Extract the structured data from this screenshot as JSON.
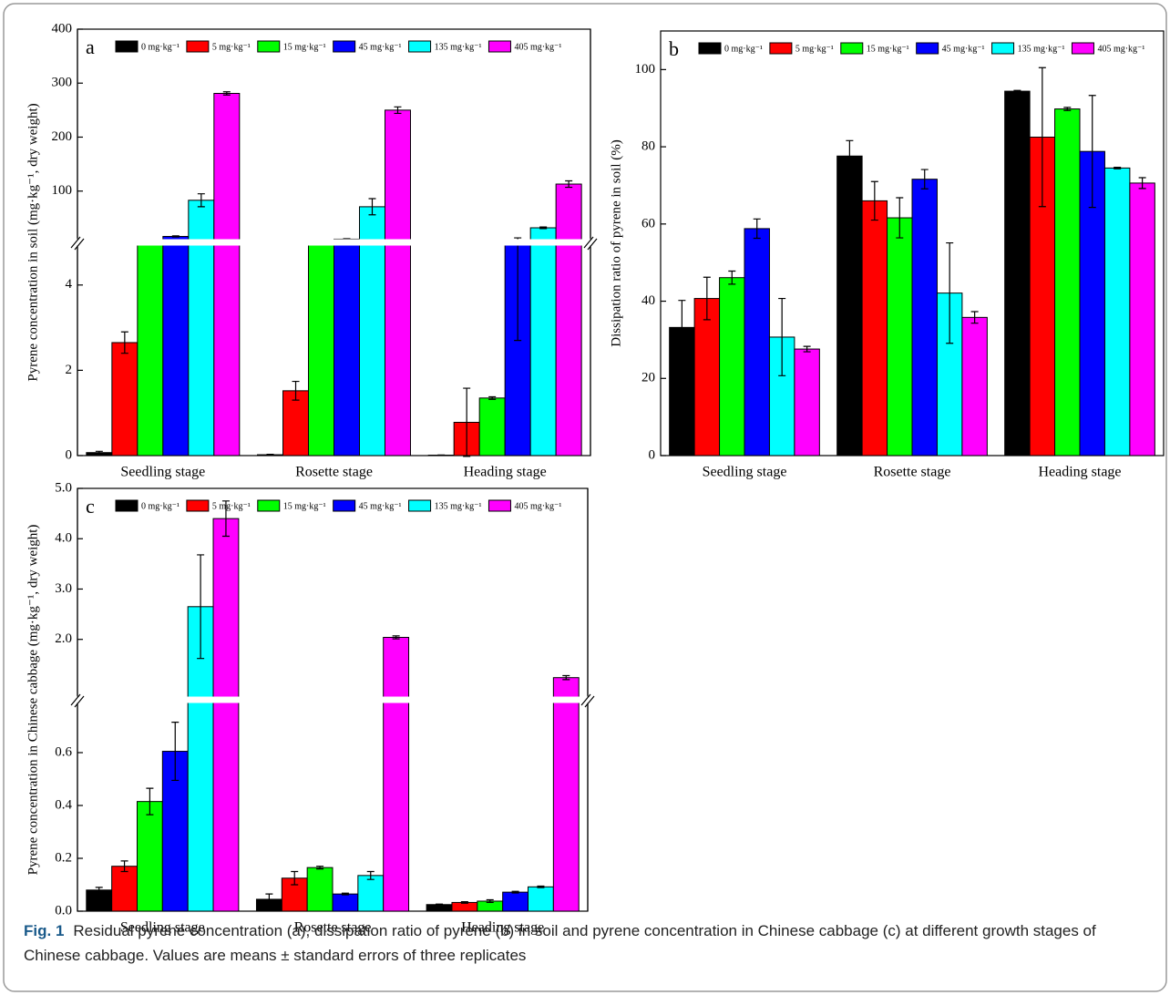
{
  "chart_data": [
    {
      "type": "bar",
      "panel_label": "a",
      "ylabel": "Pyrene concentration in soil (mg·kg⁻¹, dry weight)",
      "categories": [
        "Seedling stage",
        "Rosette stage",
        "Heading stage"
      ],
      "series": [
        {
          "name": "0 mg·kg⁻¹",
          "color": "#000000",
          "values": [
            0.07,
            0.02,
            0.01
          ],
          "errors": [
            0.03,
            0.01,
            0.005
          ]
        },
        {
          "name": "5 mg·kg⁻¹",
          "color": "#ff0000",
          "values": [
            2.65,
            1.52,
            0.78
          ],
          "errors": [
            0.25,
            0.22,
            0.8
          ]
        },
        {
          "name": "15 mg·kg⁻¹",
          "color": "#00ff00",
          "values": [
            7,
            6,
            1.35
          ],
          "errors": [
            0.3,
            0.3,
            0.03
          ]
        },
        {
          "name": "45 mg·kg⁻¹",
          "color": "#0000ff",
          "values": [
            16,
            11,
            8
          ],
          "errors": [
            1,
            0.8,
            5.3
          ]
        },
        {
          "name": "135 mg·kg⁻¹",
          "color": "#00ffff",
          "values": [
            83,
            71,
            32
          ],
          "errors": [
            12,
            15,
            1.5
          ]
        },
        {
          "name": "405 mg·kg⁻¹",
          "color": "#ff00ff",
          "values": [
            281,
            250,
            113
          ],
          "errors": [
            3,
            6,
            6
          ]
        }
      ],
      "ylim": [
        0,
        400
      ],
      "yticks": [
        0,
        2,
        4,
        100,
        200,
        300,
        400
      ],
      "y_break": 5
    },
    {
      "type": "bar",
      "panel_label": "b",
      "ylabel": "Dissipation ratio of pyrene in soil (%)",
      "categories": [
        "Seedling stage",
        "Rosette stage",
        "Heading stage"
      ],
      "series": [
        {
          "name": "0 mg·kg⁻¹",
          "color": "#000000",
          "values": [
            33.2,
            77.6,
            94.4
          ],
          "errors": [
            7,
            4,
            0.2
          ]
        },
        {
          "name": "5 mg·kg⁻¹",
          "color": "#ff0000",
          "values": [
            40.7,
            66,
            82.5
          ],
          "errors": [
            5.5,
            5,
            18
          ]
        },
        {
          "name": "15 mg·kg⁻¹",
          "color": "#00ff00",
          "values": [
            46.1,
            61.6,
            89.8
          ],
          "errors": [
            1.7,
            5.2,
            0.4
          ]
        },
        {
          "name": "45 mg·kg⁻¹",
          "color": "#0000ff",
          "values": [
            58.8,
            71.6,
            78.8
          ],
          "errors": [
            2.5,
            2.5,
            14.5
          ]
        },
        {
          "name": "135 mg·kg⁻¹",
          "color": "#00ffff",
          "values": [
            30.7,
            42.1,
            74.5
          ],
          "errors": [
            10,
            13,
            0.2
          ]
        },
        {
          "name": "405 mg·kg⁻¹",
          "color": "#ff00ff",
          "values": [
            27.6,
            35.8,
            70.6
          ],
          "errors": [
            0.7,
            1.5,
            1.4
          ]
        }
      ],
      "ylim": [
        0,
        110
      ],
      "yticks": [
        0,
        20,
        40,
        60,
        80,
        100
      ]
    },
    {
      "type": "bar",
      "panel_label": "c",
      "ylabel": "Pyrene concentration in Chinese cabbage (mg·kg⁻¹, dry weight)",
      "categories": [
        "Seedling stage",
        "Rosette stage",
        "Heading stage"
      ],
      "series": [
        {
          "name": "0 mg·kg⁻¹",
          "color": "#000000",
          "values": [
            0.08,
            0.045,
            0.025
          ],
          "errors": [
            0.01,
            0.02,
            0.002
          ]
        },
        {
          "name": "5 mg·kg⁻¹",
          "color": "#ff0000",
          "values": [
            0.17,
            0.125,
            0.033
          ],
          "errors": [
            0.02,
            0.025,
            0.003
          ]
        },
        {
          "name": "15 mg·kg⁻¹",
          "color": "#00ff00",
          "values": [
            0.415,
            0.165,
            0.038
          ],
          "errors": [
            0.05,
            0.005,
            0.005
          ]
        },
        {
          "name": "45 mg·kg⁻¹",
          "color": "#0000ff",
          "values": [
            0.605,
            0.065,
            0.072
          ],
          "errors": [
            0.11,
            0.003,
            0.003
          ]
        },
        {
          "name": "135 mg·kg⁻¹",
          "color": "#00ffff",
          "values": [
            2.65,
            0.135,
            0.092
          ],
          "errors": [
            1.03,
            0.015,
            0.003
          ]
        },
        {
          "name": "405 mg·kg⁻¹",
          "color": "#ff00ff",
          "values": [
            4.4,
            2.04,
            1.24
          ],
          "errors": [
            0.35,
            0.03,
            0.04
          ]
        }
      ],
      "ylim": [
        0,
        5
      ],
      "yticks": [
        {
          "value": 0,
          "label": "0.0"
        },
        0.2,
        0.4,
        0.6,
        {
          "value": 2,
          "label": "2.0"
        },
        {
          "value": 3,
          "label": "3.0"
        },
        {
          "value": 4,
          "label": "4.0"
        },
        {
          "value": 5,
          "label": "5.0"
        }
      ],
      "y_break": 0.8
    }
  ],
  "caption": {
    "label": "Fig. 1",
    "text": "Residual pyrene concentration (a), dissipation ratio of pyrene (b) in soil and pyrene concentration in Chinese cabbage (c) at different growth stages of Chinese cabbage. Values are means ± standard errors of three replicates"
  }
}
